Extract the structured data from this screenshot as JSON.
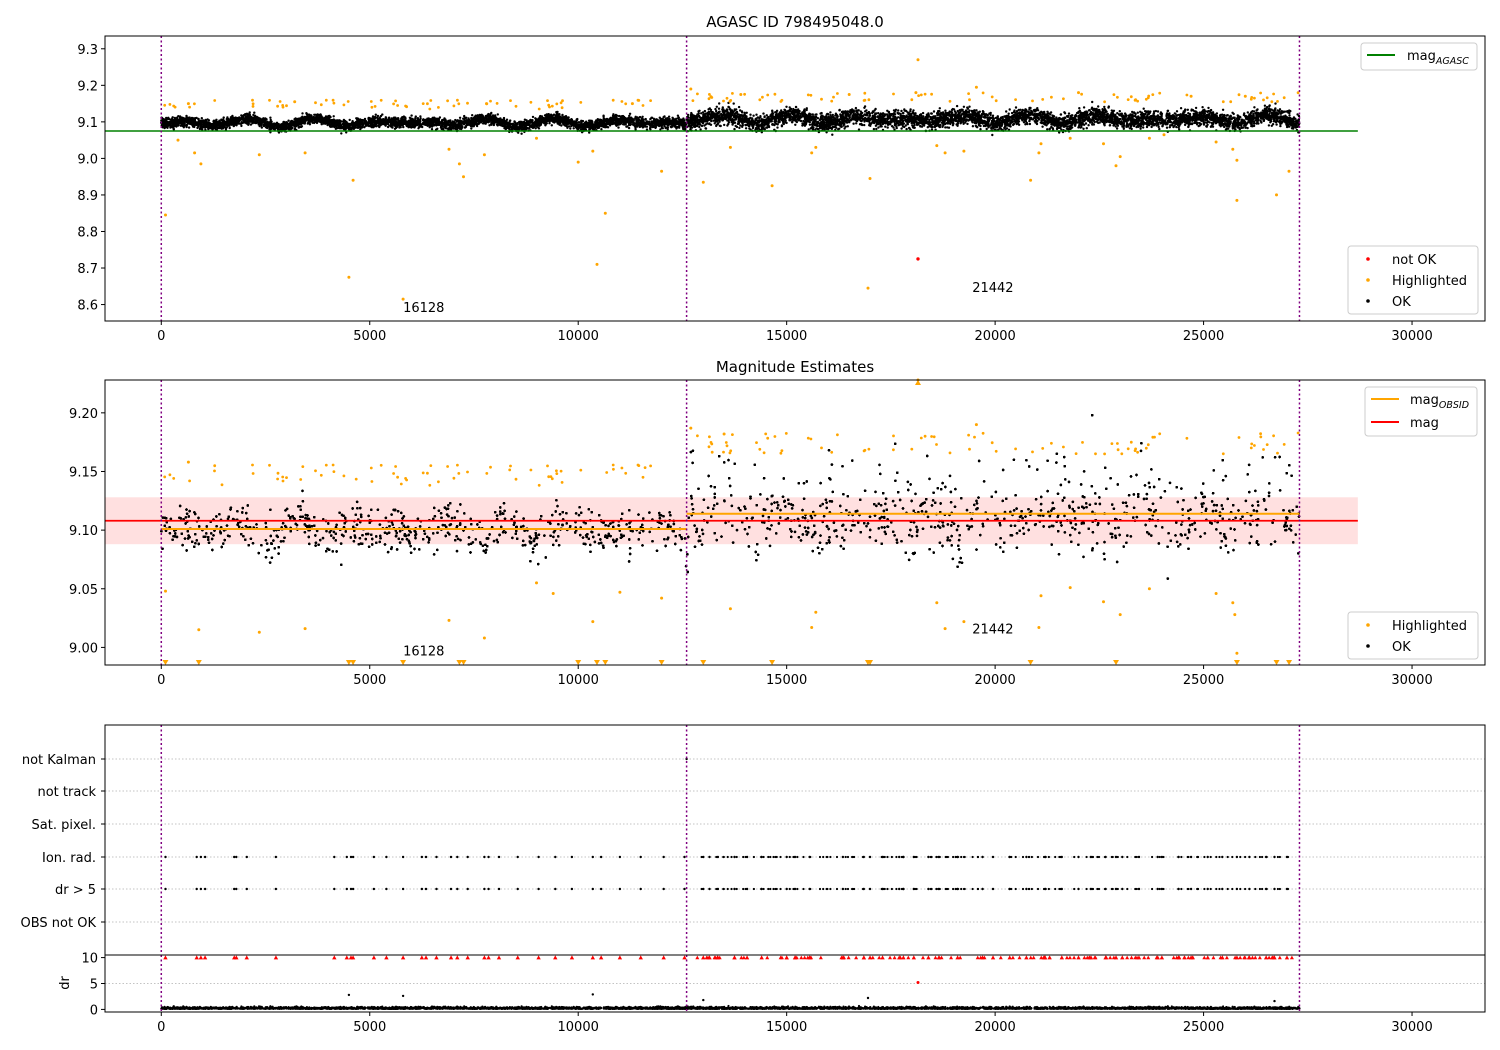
{
  "figure": {
    "background": "#ffffff"
  },
  "colors": {
    "ok": "#000000",
    "highlighted": "#ffa500",
    "not_ok": "#ff0000",
    "mag_agasc": "#008000",
    "mag_obsid": "#ffa500",
    "mag": "#ff0000",
    "band": "#ffcccc",
    "vline": "#800080",
    "grid": "#b0b0b0"
  },
  "obsid_boundaries": [
    0,
    12600,
    27300
  ],
  "chart_data": [
    {
      "id": "top",
      "type": "scatter",
      "title": "AGASC ID 798495048.0",
      "xlim": [
        -1350,
        31750
      ],
      "ylim": [
        8.555,
        9.335
      ],
      "xticks": [
        0,
        5000,
        10000,
        15000,
        20000,
        25000,
        30000
      ],
      "yticks": [
        "8.6",
        "8.7",
        "8.8",
        "8.9",
        "9.0",
        "9.1",
        "9.2",
        "9.3"
      ],
      "annotations": [
        {
          "text": "16128",
          "x": 5800,
          "y": 8.58
        },
        {
          "text": "21442",
          "x": 19450,
          "y": 8.635
        }
      ],
      "lines": [
        {
          "name": "mag_AGASC",
          "y": 9.075,
          "x": [
            -1350,
            28700
          ]
        }
      ],
      "highlighted": [
        [
          100,
          8.845
        ],
        [
          400,
          9.05
        ],
        [
          800,
          9.015
        ],
        [
          950,
          8.985
        ],
        [
          2350,
          9.01
        ],
        [
          3450,
          9.015
        ],
        [
          4500,
          8.675
        ],
        [
          4600,
          8.94
        ],
        [
          5800,
          8.615
        ],
        [
          6900,
          9.025
        ],
        [
          7150,
          8.985
        ],
        [
          7250,
          8.95
        ],
        [
          7750,
          9.01
        ],
        [
          9000,
          9.055
        ],
        [
          10000,
          8.99
        ],
        [
          10350,
          9.02
        ],
        [
          10450,
          8.71
        ],
        [
          10650,
          8.85
        ],
        [
          12000,
          8.965
        ],
        [
          13000,
          8.935
        ],
        [
          13650,
          9.03
        ],
        [
          14650,
          8.925
        ],
        [
          15600,
          9.015
        ],
        [
          15700,
          9.03
        ],
        [
          16950,
          8.645
        ],
        [
          17000,
          8.945
        ],
        [
          18150,
          9.27
        ],
        [
          18600,
          9.035
        ],
        [
          18800,
          9.015
        ],
        [
          19250,
          9.02
        ],
        [
          20850,
          8.94
        ],
        [
          21050,
          9.015
        ],
        [
          21100,
          9.04
        ],
        [
          21800,
          9.055
        ],
        [
          22600,
          9.04
        ],
        [
          22900,
          8.98
        ],
        [
          23000,
          9.005
        ],
        [
          23700,
          9.055
        ],
        [
          24050,
          9.065
        ],
        [
          25300,
          9.045
        ],
        [
          25700,
          9.025
        ],
        [
          25800,
          8.995
        ],
        [
          25800,
          8.885
        ],
        [
          26750,
          8.9
        ],
        [
          27050,
          8.965
        ],
        [
          19550,
          9.195
        ],
        [
          18100,
          9.18
        ],
        [
          16500,
          9.175
        ],
        [
          13900,
          9.175
        ],
        [
          12700,
          9.19
        ],
        [
          3200,
          9.155
        ],
        [
          650,
          9.15
        ],
        [
          7800,
          9.15
        ],
        [
          11300,
          9.15
        ],
        [
          22000,
          9.18
        ],
        [
          24700,
          9.17
        ],
        [
          26000,
          9.17
        ]
      ],
      "not_ok": [
        [
          18150,
          8.725
        ]
      ],
      "legend_lines": [
        {
          "label_main": "mag",
          "label_sub": "AGASC"
        }
      ],
      "legend_points": [
        {
          "label": "not OK"
        },
        {
          "label": "Highlighted"
        },
        {
          "label": "OK"
        }
      ]
    },
    {
      "id": "middle",
      "type": "scatter",
      "title": "Magnitude Estimates",
      "xlim": [
        -1350,
        31750
      ],
      "ylim": [
        8.985,
        9.228
      ],
      "xticks": [
        0,
        5000,
        10000,
        15000,
        20000,
        25000,
        30000
      ],
      "yticks": [
        "9.00",
        "9.05",
        "9.10",
        "9.15",
        "9.20"
      ],
      "annotations": [
        {
          "text": "16128",
          "x": 5800,
          "y": 8.993
        },
        {
          "text": "21442",
          "x": 19450,
          "y": 9.012
        }
      ],
      "band": {
        "y0": 9.088,
        "y1": 9.128,
        "x": [
          -1350,
          28700
        ]
      },
      "lines": [
        {
          "name": "mag_OBSID_1",
          "y": 9.101,
          "x": [
            0,
            12600
          ]
        },
        {
          "name": "mag_OBSID_2",
          "y": 9.114,
          "x": [
            12600,
            27300
          ]
        },
        {
          "name": "mag",
          "y": 9.108,
          "x": [
            -1350,
            28700
          ]
        }
      ],
      "highlighted": [
        [
          100,
          9.048
        ],
        [
          900,
          9.015
        ],
        [
          2350,
          9.013
        ],
        [
          3450,
          9.016
        ],
        [
          6900,
          9.023
        ],
        [
          7750,
          9.008
        ],
        [
          9000,
          9.055
        ],
        [
          9400,
          9.046
        ],
        [
          10350,
          9.022
        ],
        [
          11000,
          9.047
        ],
        [
          12000,
          9.042
        ],
        [
          13650,
          9.033
        ],
        [
          15600,
          9.017
        ],
        [
          15700,
          9.03
        ],
        [
          18600,
          9.038
        ],
        [
          18800,
          9.016
        ],
        [
          19250,
          9.022
        ],
        [
          21050,
          9.017
        ],
        [
          21100,
          9.044
        ],
        [
          21800,
          9.051
        ],
        [
          22600,
          9.039
        ],
        [
          23000,
          9.028
        ],
        [
          23700,
          9.05
        ],
        [
          25300,
          9.046
        ],
        [
          25700,
          9.038
        ],
        [
          25750,
          9.028
        ],
        [
          25800,
          8.995
        ],
        [
          19550,
          9.19
        ],
        [
          12700,
          9.187
        ],
        [
          18150,
          9.228
        ],
        [
          650,
          9.158
        ],
        [
          13500,
          9.182
        ]
      ],
      "clipped_low": [
        100,
        900,
        4500,
        4600,
        5800,
        7150,
        7250,
        10000,
        10450,
        10650,
        12000,
        13000,
        14650,
        16950,
        17000,
        20850,
        22900,
        25800,
        26750,
        27050
      ],
      "legend_lines": [
        {
          "label_main": "mag",
          "label_sub": "OBSID"
        },
        {
          "label_main": "mag",
          "label_sub": ""
        }
      ],
      "legend_points": [
        {
          "label": "Highlighted"
        },
        {
          "label": "OK"
        }
      ]
    },
    {
      "id": "flags",
      "type": "scatter",
      "xlim": [
        -1350,
        31750
      ],
      "categories": [
        "not Kalman",
        "not track",
        "Sat. pixel.",
        "Ion. rad.",
        "dr > 5",
        "OBS not OK"
      ],
      "flagged_x": [
        100,
        850,
        950,
        1050,
        1750,
        1800,
        2050,
        2750,
        4150,
        4450,
        4550,
        4600,
        5100,
        5400,
        5800,
        6250,
        6350,
        6600,
        6950,
        7100,
        7350,
        7750,
        7850,
        8100,
        8550,
        9050,
        9450,
        9850,
        10350,
        10550,
        11000,
        11500,
        12050,
        12550,
        13000,
        13150,
        13350,
        13750,
        14050,
        14400,
        15000,
        15200,
        15550,
        16350,
        16850,
        17000,
        17300,
        17700,
        17800,
        18050,
        18400,
        18650,
        19100,
        19700,
        19950,
        20350,
        20750,
        21200,
        21600,
        22000,
        22300,
        22650,
        22900,
        23050,
        23450,
        23900,
        24000,
        24400,
        24700,
        25100,
        25450,
        25800,
        26100,
        26500,
        26700,
        27000
      ]
    },
    {
      "id": "dr",
      "type": "scatter",
      "ylabel": "dr",
      "xlim": [
        -1350,
        31750
      ],
      "ylim": [
        -0.5,
        10.5
      ],
      "xticks": [
        0,
        5000,
        10000,
        15000,
        20000,
        25000,
        30000
      ],
      "yticks": [
        "0",
        "5",
        "10"
      ],
      "capped_y": 10,
      "outliers": [
        [
          4500,
          2.8
        ],
        [
          5800,
          2.6
        ],
        [
          10350,
          2.9
        ],
        [
          13000,
          1.8
        ],
        [
          16950,
          2.2
        ],
        [
          26700,
          1.6
        ]
      ],
      "not_ok": [
        [
          18150,
          5.2
        ]
      ]
    }
  ]
}
